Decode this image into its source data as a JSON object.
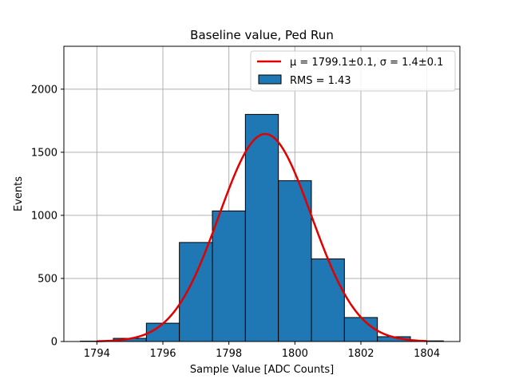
{
  "chart_data": {
    "type": "bar",
    "title": "Baseline value, Ped Run",
    "xlabel": "Sample Value [ADC Counts]",
    "ylabel": "Events",
    "xlim": [
      1793.0,
      1805.0
    ],
    "ylim": [
      0,
      2340
    ],
    "xticks": [
      1794,
      1796,
      1798,
      1800,
      1802,
      1804
    ],
    "yticks": [
      0,
      500,
      1000,
      1500,
      2000
    ],
    "grid": true,
    "legend_position": "top-right",
    "bins": [
      {
        "x0": 1793.5,
        "x1": 1794.5,
        "value": 3
      },
      {
        "x0": 1794.5,
        "x1": 1795.5,
        "value": 25
      },
      {
        "x0": 1795.5,
        "x1": 1796.5,
        "value": 145
      },
      {
        "x0": 1796.5,
        "x1": 1797.5,
        "value": 785
      },
      {
        "x0": 1797.5,
        "x1": 1798.5,
        "value": 1035
      },
      {
        "x0": 1798.5,
        "x1": 1799.5,
        "value": 1800
      },
      {
        "x0": 1799.5,
        "x1": 1800.5,
        "value": 1275
      },
      {
        "x0": 1800.5,
        "x1": 1801.5,
        "value": 655
      },
      {
        "x0": 1801.5,
        "x1": 1802.5,
        "value": 190
      },
      {
        "x0": 1802.5,
        "x1": 1803.5,
        "value": 38
      },
      {
        "x0": 1803.5,
        "x1": 1804.5,
        "value": 5
      }
    ],
    "fit": {
      "type": "gaussian",
      "mu": 1799.1,
      "sigma": 1.4,
      "amplitude": 1645,
      "x_range": [
        1794.0,
        1804.0
      ],
      "label": "μ = 1799.1±0.1, σ = 1.4±0.1",
      "color": "#e00000"
    },
    "histogram_label": "RMS = 1.43",
    "bar_color": "#1f77b4",
    "bar_edge_color": "#000000"
  }
}
